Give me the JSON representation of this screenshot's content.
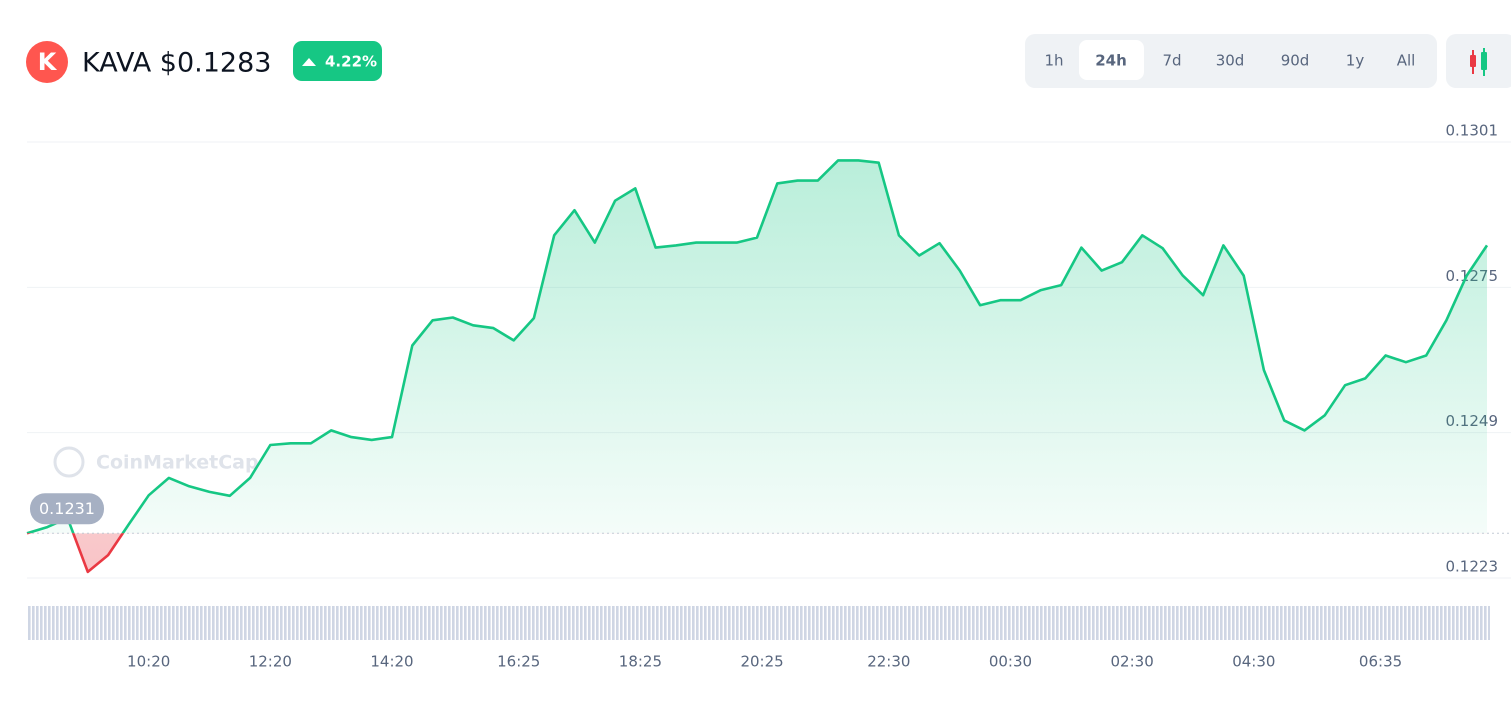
{
  "header": {
    "logo_letter": "K",
    "title": "KAVA $0.1283",
    "change": "4.22%"
  },
  "tabs": [
    "1h",
    "24h",
    "7d",
    "30d",
    "90d",
    "1y",
    "All"
  ],
  "active_tab": 1,
  "watermark": "CoinMarketCap",
  "chart_data": {
    "type": "line",
    "values": [
      0.1231,
      0.12321,
      0.12337,
      0.12241,
      0.12271,
      0.12325,
      0.12378,
      0.12409,
      0.12394,
      0.12384,
      0.12377,
      0.12409,
      0.12468,
      0.12471,
      0.12471,
      0.12494,
      0.12482,
      0.12477,
      0.12482,
      0.12646,
      0.12691,
      0.12696,
      0.12682,
      0.12677,
      0.12655,
      0.12695,
      0.12843,
      0.12888,
      0.1283,
      0.12905,
      0.12927,
      0.12821,
      0.12825,
      0.1283,
      0.1283,
      0.1283,
      0.12839,
      0.12936,
      0.12941,
      0.12941,
      0.12977,
      0.12977,
      0.12973,
      0.12843,
      0.12807,
      0.12829,
      0.1278,
      0.12718,
      0.12727,
      0.12727,
      0.12745,
      0.12754,
      0.12821,
      0.1278,
      0.12795,
      0.12843,
      0.1282,
      0.12771,
      0.12736,
      0.12825,
      0.12771,
      0.12602,
      0.12512,
      0.12494,
      0.12521,
      0.12575,
      0.12587,
      0.12628,
      0.12616,
      0.12628,
      0.12691,
      0.12771,
      0.12825
    ],
    "baseline": 0.1231,
    "up_color": "#16c784",
    "down_color": "#ea3943",
    "xlim": [
      0,
      72
    ],
    "xticks": [
      {
        "value": 6,
        "label": "10:20"
      },
      {
        "value": 12,
        "label": "12:20"
      },
      {
        "value": 18,
        "label": "14:20"
      },
      {
        "value": 24.25,
        "label": "16:25"
      },
      {
        "value": 30.25,
        "label": "18:25"
      },
      {
        "value": 36.25,
        "label": "20:25"
      },
      {
        "value": 42.5,
        "label": "22:30"
      },
      {
        "value": 48.5,
        "label": "00:30"
      },
      {
        "value": 54.5,
        "label": "02:30"
      },
      {
        "value": 60.5,
        "label": "04:30"
      },
      {
        "value": 66.75,
        "label": "06:35"
      }
    ],
    "ylim": [
      0.1223,
      0.1301
    ],
    "yticks": [
      0.1223,
      0.1249,
      0.1275,
      0.1301
    ],
    "grid": true
  }
}
